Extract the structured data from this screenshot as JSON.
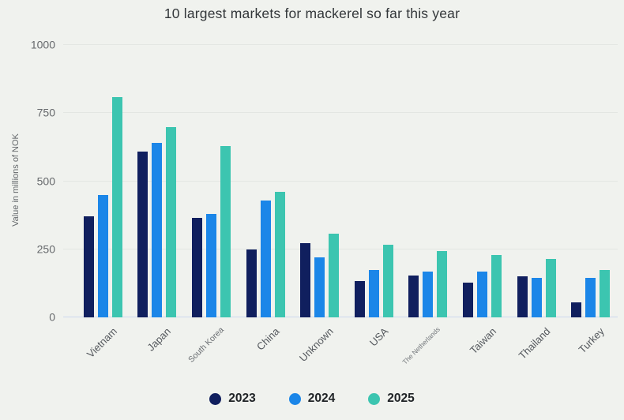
{
  "title": "10 largest markets for mackerel so far this year",
  "y_axis_title": "Value in millions of NOK",
  "chart_data": {
    "type": "bar",
    "title": "10 largest markets for mackerel so far this year",
    "xlabel": "",
    "ylabel": "Value in millions of NOK",
    "ylim": [
      0,
      1000
    ],
    "yticks": [
      0,
      250,
      500,
      750,
      1000
    ],
    "grid": true,
    "legend_position": "bottom",
    "categories": [
      "Vietnam",
      "Japan",
      "South Korea",
      "China",
      "Unknown",
      "USA",
      "The Netherlands",
      "Taiwan",
      "Thailand",
      "Turkey"
    ],
    "series": [
      {
        "name": "2023",
        "color": "#101f5e",
        "values": [
          370,
          610,
          365,
          248,
          272,
          133,
          155,
          128,
          152,
          55
        ]
      },
      {
        "name": "2024",
        "color": "#1b86e8",
        "values": [
          450,
          640,
          380,
          428,
          220,
          173,
          168,
          168,
          145,
          145
        ]
      },
      {
        "name": "2025",
        "color": "#3cc5b0",
        "values": [
          810,
          700,
          630,
          460,
          308,
          268,
          243,
          228,
          215,
          175
        ]
      }
    ]
  },
  "colors": {
    "background": "#f0f2ee",
    "gridline": "#e3e6e2",
    "zero_line": "#ccd7ed",
    "series_2023": "#101f5e",
    "series_2024": "#1b86e8",
    "series_2025": "#3cc5b0"
  }
}
